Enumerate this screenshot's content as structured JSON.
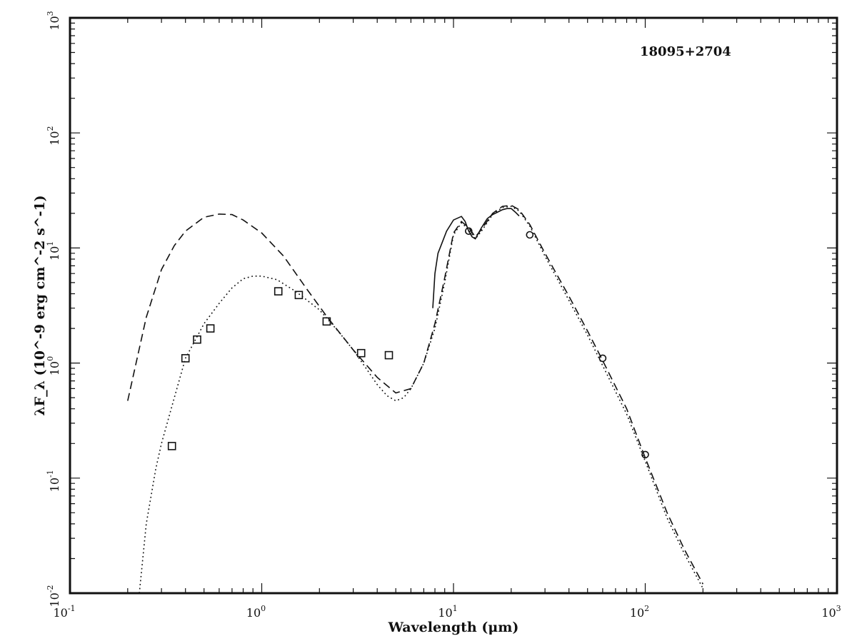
{
  "chart_data": {
    "type": "line",
    "title": "",
    "annotation": "18095+2704",
    "xlabel": "Wavelength (μm)",
    "ylabel": "λF_λ (10^-9 erg cm^-2 s^-1)",
    "xscale": "log",
    "yscale": "log",
    "xlim": [
      0.1,
      1000
    ],
    "ylim": [
      0.01,
      1000
    ],
    "grid": false,
    "x_ticks": [
      {
        "base": "10",
        "exp": "-1"
      },
      {
        "base": "10",
        "exp": "0"
      },
      {
        "base": "10",
        "exp": "1"
      },
      {
        "base": "10",
        "exp": "2"
      },
      {
        "base": "10",
        "exp": "3"
      }
    ],
    "y_ticks": [
      {
        "base": "10",
        "exp": "-2"
      },
      {
        "base": "10",
        "exp": "-1"
      },
      {
        "base": "10",
        "exp": "0"
      },
      {
        "base": "10",
        "exp": "1"
      },
      {
        "base": "10",
        "exp": "2"
      },
      {
        "base": "10",
        "exp": "3"
      }
    ],
    "series": [
      {
        "style": "dashed",
        "points": [
          [
            0.2,
            0.47
          ],
          [
            0.25,
            2.5
          ],
          [
            0.3,
            6.5
          ],
          [
            0.35,
            10.5
          ],
          [
            0.4,
            14
          ],
          [
            0.5,
            18.5
          ],
          [
            0.6,
            19.7
          ],
          [
            0.7,
            19.5
          ],
          [
            0.8,
            17.5
          ],
          [
            1.0,
            13.5
          ],
          [
            1.3,
            8.5
          ],
          [
            1.7,
            4.5
          ],
          [
            2.2,
            2.5
          ],
          [
            3.0,
            1.3
          ],
          [
            4.0,
            0.75
          ],
          [
            5.0,
            0.55
          ],
          [
            6.0,
            0.6
          ],
          [
            7.0,
            1.0
          ],
          [
            8.0,
            2.2
          ],
          [
            9.0,
            5.5
          ],
          [
            10.0,
            13.5
          ],
          [
            11.0,
            17.0
          ],
          [
            12.0,
            15.0
          ],
          [
            13.0,
            12.5
          ],
          [
            14.0,
            14.5
          ],
          [
            16.0,
            20.0
          ],
          [
            18.0,
            23.0
          ],
          [
            20.0,
            23.5
          ],
          [
            22.0,
            21.5
          ],
          [
            25.0,
            16.0
          ],
          [
            30.0,
            9.0
          ],
          [
            40.0,
            3.8
          ],
          [
            50.0,
            1.9
          ],
          [
            60.0,
            1.05
          ],
          [
            80.0,
            0.4
          ],
          [
            100.0,
            0.15
          ],
          [
            130.0,
            0.05
          ],
          [
            160.0,
            0.024
          ],
          [
            200.0,
            0.012
          ]
        ]
      },
      {
        "style": "dotted",
        "points": [
          [
            0.23,
            0.01
          ],
          [
            0.25,
            0.04
          ],
          [
            0.28,
            0.12
          ],
          [
            0.3,
            0.2
          ],
          [
            0.35,
            0.5
          ],
          [
            0.4,
            1.1
          ],
          [
            0.5,
            2.2
          ],
          [
            0.6,
            3.3
          ],
          [
            0.7,
            4.5
          ],
          [
            0.8,
            5.4
          ],
          [
            0.9,
            5.7
          ],
          [
            1.0,
            5.7
          ],
          [
            1.2,
            5.3
          ],
          [
            1.5,
            4.2
          ],
          [
            2.0,
            2.9
          ],
          [
            2.5,
            1.9
          ],
          [
            3.0,
            1.3
          ],
          [
            3.5,
            0.9
          ],
          [
            4.0,
            0.65
          ],
          [
            4.5,
            0.52
          ],
          [
            5.0,
            0.47
          ],
          [
            5.5,
            0.5
          ],
          [
            6.0,
            0.6
          ],
          [
            7.0,
            1.0
          ],
          [
            8.0,
            2.0
          ],
          [
            9.0,
            5.0
          ],
          [
            10.0,
            13.0
          ],
          [
            11.0,
            16.5
          ],
          [
            12.0,
            14.5
          ],
          [
            13.0,
            12.0
          ],
          [
            14.0,
            14.0
          ],
          [
            16.0,
            19.5
          ],
          [
            18.0,
            22.5
          ],
          [
            20.0,
            23.0
          ],
          [
            22.0,
            21.0
          ],
          [
            25.0,
            15.5
          ],
          [
            30.0,
            8.5
          ],
          [
            40.0,
            3.5
          ],
          [
            50.0,
            1.75
          ],
          [
            60.0,
            0.95
          ],
          [
            80.0,
            0.36
          ],
          [
            100.0,
            0.14
          ],
          [
            130.0,
            0.045
          ],
          [
            160.0,
            0.022
          ],
          [
            200.0,
            0.011
          ]
        ]
      },
      {
        "style": "solid",
        "points": [
          [
            7.8,
            3.0
          ],
          [
            8.0,
            6.0
          ],
          [
            8.3,
            9.0
          ],
          [
            8.7,
            11.0
          ],
          [
            9.2,
            14.0
          ],
          [
            10.0,
            17.5
          ],
          [
            11.0,
            18.8
          ],
          [
            11.5,
            17.0
          ],
          [
            12.0,
            14.0
          ],
          [
            12.5,
            12.5
          ],
          [
            13.0,
            12.0
          ],
          [
            14.0,
            15.0
          ],
          [
            15.0,
            18.0
          ],
          [
            16.0,
            19.5
          ],
          [
            17.0,
            20.5
          ],
          [
            18.0,
            21.5
          ],
          [
            19.0,
            22.0
          ],
          [
            20.0,
            22.0
          ],
          [
            21.0,
            20.5
          ],
          [
            22.0,
            19.0
          ]
        ]
      }
    ],
    "observations": [
      {
        "marker": "square",
        "x": 0.34,
        "y": 0.19
      },
      {
        "marker": "square",
        "x": 0.4,
        "y": 1.1
      },
      {
        "marker": "square",
        "x": 0.46,
        "y": 1.6
      },
      {
        "marker": "square",
        "x": 0.54,
        "y": 2.0
      },
      {
        "marker": "square",
        "x": 1.22,
        "y": 4.2
      },
      {
        "marker": "square",
        "x": 1.56,
        "y": 3.9
      },
      {
        "marker": "square",
        "x": 2.18,
        "y": 2.3
      },
      {
        "marker": "square",
        "x": 3.3,
        "y": 1.22
      },
      {
        "marker": "square",
        "x": 4.6,
        "y": 1.17
      },
      {
        "marker": "circle",
        "x": 12.0,
        "y": 14.0
      },
      {
        "marker": "circle",
        "x": 25.0,
        "y": 13.0
      },
      {
        "marker": "circle",
        "x": 60.0,
        "y": 1.1
      },
      {
        "marker": "circle",
        "x": 100.0,
        "y": 0.16
      }
    ]
  }
}
